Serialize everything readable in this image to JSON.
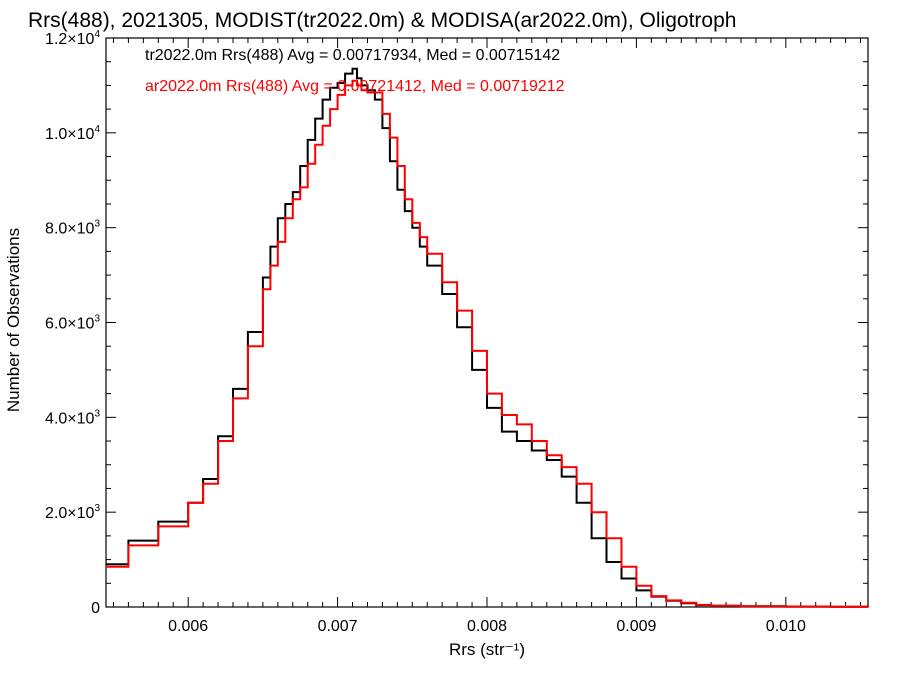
{
  "chart_data": {
    "type": "line",
    "title": "Rrs(488), 2021305, MODIST(tr2022.0m) & MODISA(ar2022.0m), Oligotroph",
    "xlabel": "Rrs (str⁻¹)",
    "ylabel": "Number of Observations",
    "xlim": [
      0.00545,
      0.01055
    ],
    "ylim": [
      0,
      12000
    ],
    "step": true,
    "grid": false,
    "x_ticks": [
      {
        "value": 0.006,
        "label": "0.006"
      },
      {
        "value": 0.007,
        "label": "0.007"
      },
      {
        "value": 0.008,
        "label": "0.008"
      },
      {
        "value": 0.009,
        "label": "0.009"
      },
      {
        "value": 0.01,
        "label": "0.010"
      }
    ],
    "y_ticks": [
      {
        "value": 0,
        "mant": "0",
        "exp": ""
      },
      {
        "value": 2000,
        "mant": "2.0×10",
        "exp": "3"
      },
      {
        "value": 4000,
        "mant": "4.0×10",
        "exp": "3"
      },
      {
        "value": 6000,
        "mant": "6.0×10",
        "exp": "3"
      },
      {
        "value": 8000,
        "mant": "8.0×10",
        "exp": "3"
      },
      {
        "value": 10000,
        "mant": "1.0×10",
        "exp": "4"
      },
      {
        "value": 12000,
        "mant": "1.2×10",
        "exp": "4"
      }
    ],
    "annotations": [
      {
        "text": "tr2022.0m Rrs(488) Avg = 0.00717934, Med = 0.00715142",
        "color": "#000000"
      },
      {
        "text": "ar2022.0m Rrs(488) Avg = 0.00721412, Med = 0.00719212",
        "color": "#ff0000"
      }
    ],
    "series": [
      {
        "color": "#000000",
        "x": [
          0.00545,
          0.0056,
          0.0058,
          0.006,
          0.0061,
          0.0062,
          0.0063,
          0.0064,
          0.0065,
          0.00655,
          0.0066,
          0.00665,
          0.0067,
          0.00675,
          0.0068,
          0.00685,
          0.0069,
          0.00695,
          0.007,
          0.00705,
          0.0071,
          0.00713,
          0.00716,
          0.0072,
          0.00725,
          0.0073,
          0.00735,
          0.0074,
          0.00745,
          0.0075,
          0.00755,
          0.0076,
          0.0077,
          0.0078,
          0.0079,
          0.008,
          0.0081,
          0.0082,
          0.0083,
          0.0084,
          0.0085,
          0.0086,
          0.0087,
          0.0088,
          0.0089,
          0.009,
          0.0091,
          0.0092,
          0.0093,
          0.0094,
          0.0095,
          0.0097,
          0.01,
          0.0103,
          0.01055
        ],
        "y": [
          900,
          1400,
          1800,
          2200,
          2700,
          3600,
          4600,
          5800,
          6950,
          7600,
          8200,
          8500,
          8750,
          9300,
          9850,
          10300,
          10700,
          10950,
          11050,
          11250,
          11350,
          11150,
          11000,
          10900,
          10700,
          10100,
          9400,
          8800,
          8350,
          8000,
          7600,
          7200,
          6600,
          5900,
          5000,
          4200,
          3700,
          3500,
          3300,
          3100,
          2750,
          2200,
          1450,
          950,
          600,
          350,
          220,
          130,
          80,
          40,
          25,
          15,
          8,
          5,
          3
        ]
      },
      {
        "color": "#ff0000",
        "x": [
          0.00545,
          0.0056,
          0.0058,
          0.006,
          0.0061,
          0.0062,
          0.0063,
          0.0064,
          0.0065,
          0.00655,
          0.0066,
          0.00665,
          0.0067,
          0.00675,
          0.0068,
          0.00685,
          0.0069,
          0.00695,
          0.007,
          0.00705,
          0.0071,
          0.00713,
          0.00716,
          0.0072,
          0.00725,
          0.0073,
          0.00735,
          0.0074,
          0.00745,
          0.0075,
          0.00755,
          0.0076,
          0.0077,
          0.0078,
          0.0079,
          0.008,
          0.0081,
          0.0082,
          0.0083,
          0.0084,
          0.0085,
          0.0086,
          0.0087,
          0.0088,
          0.0089,
          0.009,
          0.0091,
          0.0092,
          0.0093,
          0.0094,
          0.0095,
          0.0097,
          0.01,
          0.0103,
          0.01055
        ],
        "y": [
          850,
          1300,
          1700,
          2200,
          2600,
          3500,
          4400,
          5500,
          6700,
          7200,
          7700,
          8200,
          8600,
          8850,
          9350,
          9750,
          10150,
          10500,
          10800,
          11000,
          11100,
          11000,
          10900,
          10850,
          10850,
          10400,
          9900,
          9300,
          8600,
          8100,
          7800,
          7450,
          6850,
          6250,
          5400,
          4500,
          4050,
          3850,
          3500,
          3200,
          2950,
          2600,
          2000,
          1450,
          850,
          450,
          230,
          140,
          90,
          45,
          28,
          16,
          9,
          5,
          3
        ]
      }
    ]
  }
}
